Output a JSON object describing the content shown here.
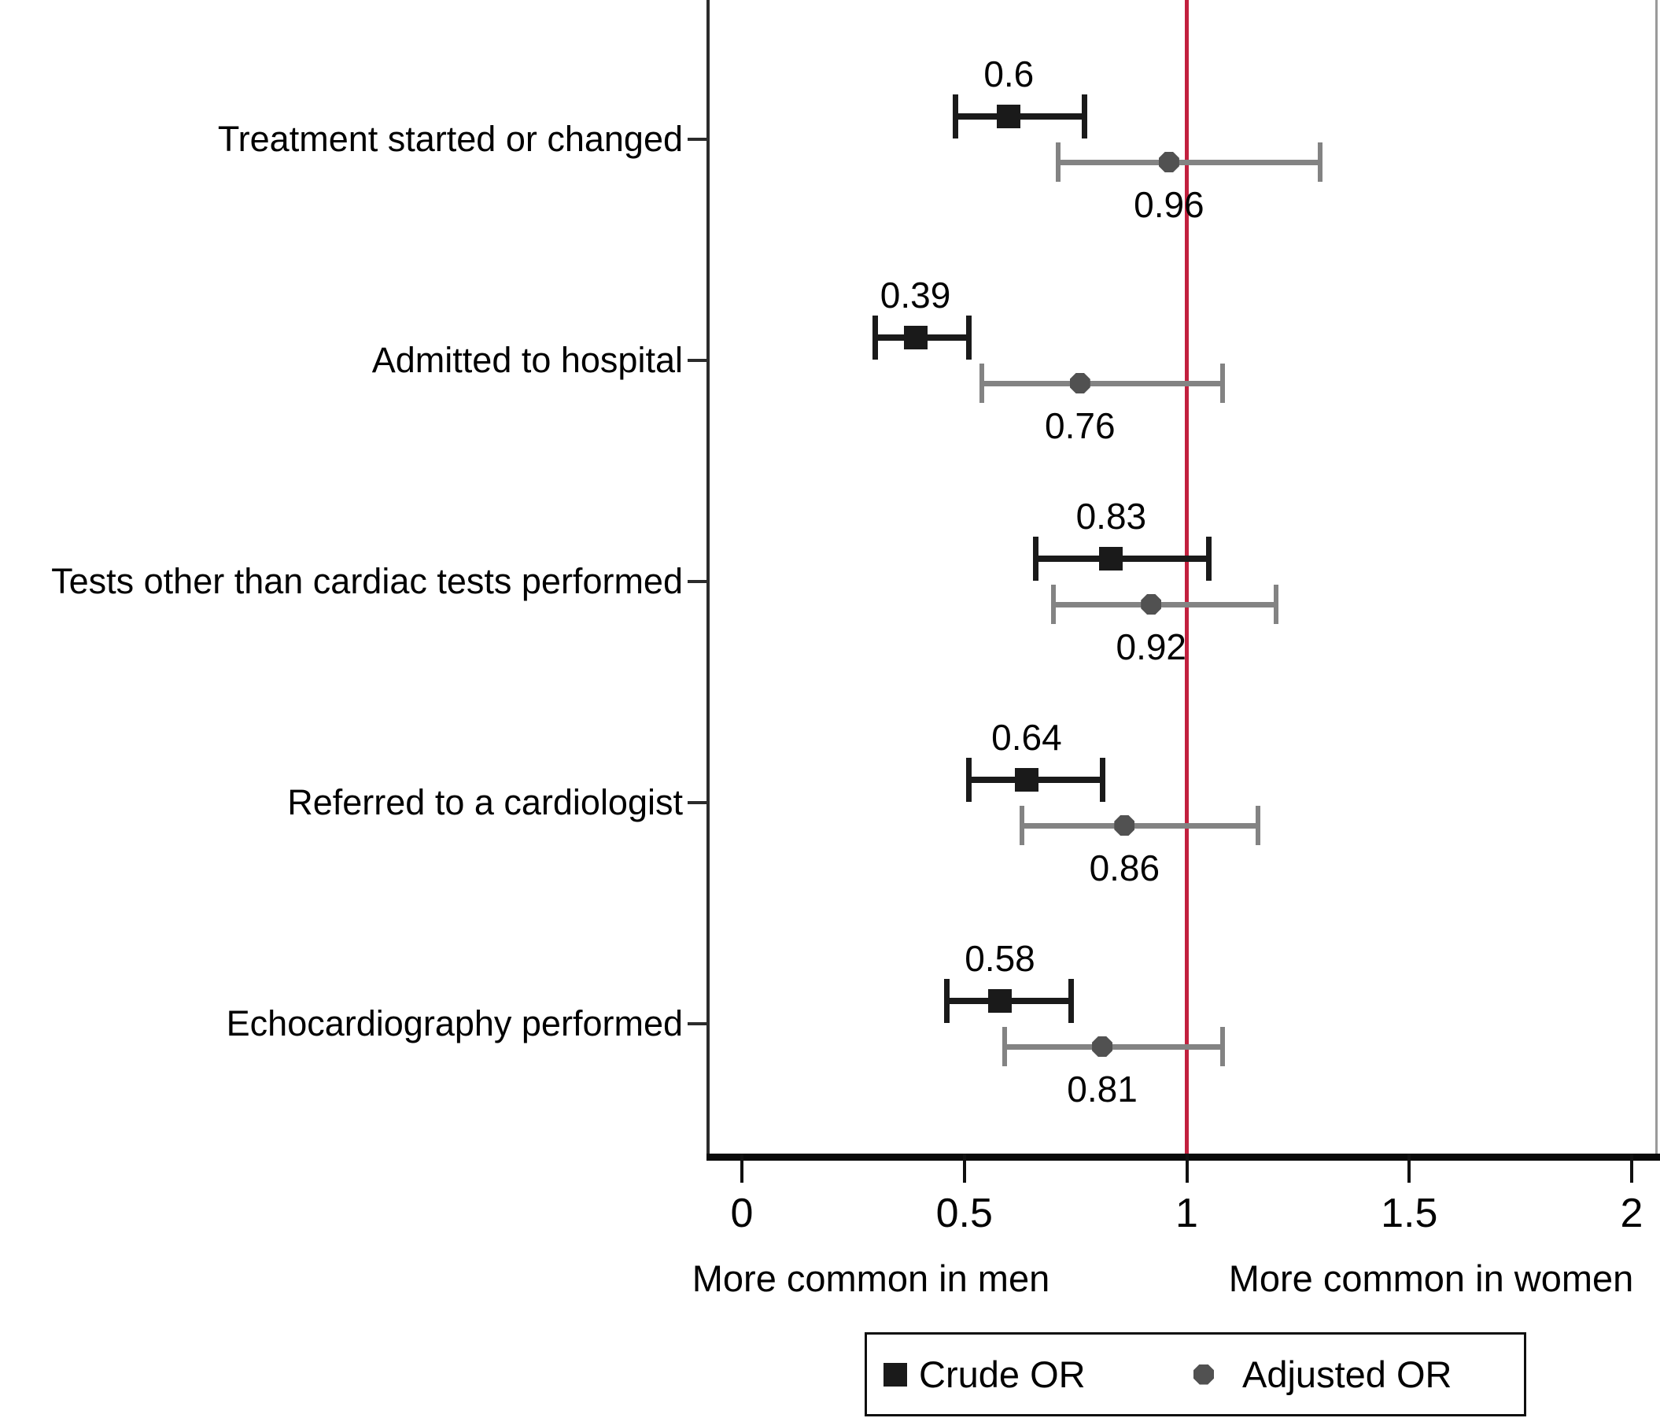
{
  "chart_data": {
    "type": "scatter",
    "variant": "forest-plot-odds-ratios",
    "title": "",
    "grid": false,
    "categories": [
      "Treatment started or changed",
      "Admitted to hospital",
      "Tests other than cardiac tests performed",
      "Referred to a cardiologist",
      "Echocardiography performed"
    ],
    "series": [
      {
        "name": "Crude OR",
        "marker": "square",
        "color": "#1a1a1a",
        "line_color": "#1a1a1a",
        "values": [
          0.6,
          0.39,
          0.83,
          0.64,
          0.58
        ],
        "labels": [
          "0.6",
          "0.39",
          "0.83",
          "0.64",
          "0.58"
        ],
        "ci_low": [
          0.48,
          0.3,
          0.66,
          0.51,
          0.46
        ],
        "ci_high": [
          0.77,
          0.51,
          1.05,
          0.81,
          0.74
        ]
      },
      {
        "name": "Adjusted OR",
        "marker": "octagon",
        "color": "#515151",
        "line_color": "#838383",
        "values": [
          0.96,
          0.76,
          0.92,
          0.86,
          0.81
        ],
        "labels": [
          "0.96",
          "0.76",
          "0.92",
          "0.86",
          "0.81"
        ],
        "ci_low": [
          0.71,
          0.54,
          0.7,
          0.63,
          0.59
        ],
        "ci_high": [
          1.3,
          1.08,
          1.2,
          1.16,
          1.08
        ]
      }
    ],
    "x_axis": {
      "range": [
        -0.07,
        2.06
      ],
      "ticks": [
        0,
        0.5,
        1,
        1.5,
        2
      ],
      "tick_labels": [
        "0",
        "0.5",
        "1",
        "1.5",
        "2"
      ],
      "left_caption": "More common in men",
      "right_caption": "More common in women"
    },
    "reference_line": {
      "x": 1,
      "color": "#c2203e"
    },
    "axis_colors": {
      "left": "#2b2b2b",
      "bottom": "#0a0a0a",
      "right": "#9a9a9a"
    },
    "legend": {
      "position": "bottom",
      "items": [
        {
          "label": "Crude OR",
          "marker": "square",
          "color": "#1a1a1a"
        },
        {
          "label": "Adjusted OR",
          "marker": "octagon",
          "color": "#515151"
        }
      ]
    }
  }
}
